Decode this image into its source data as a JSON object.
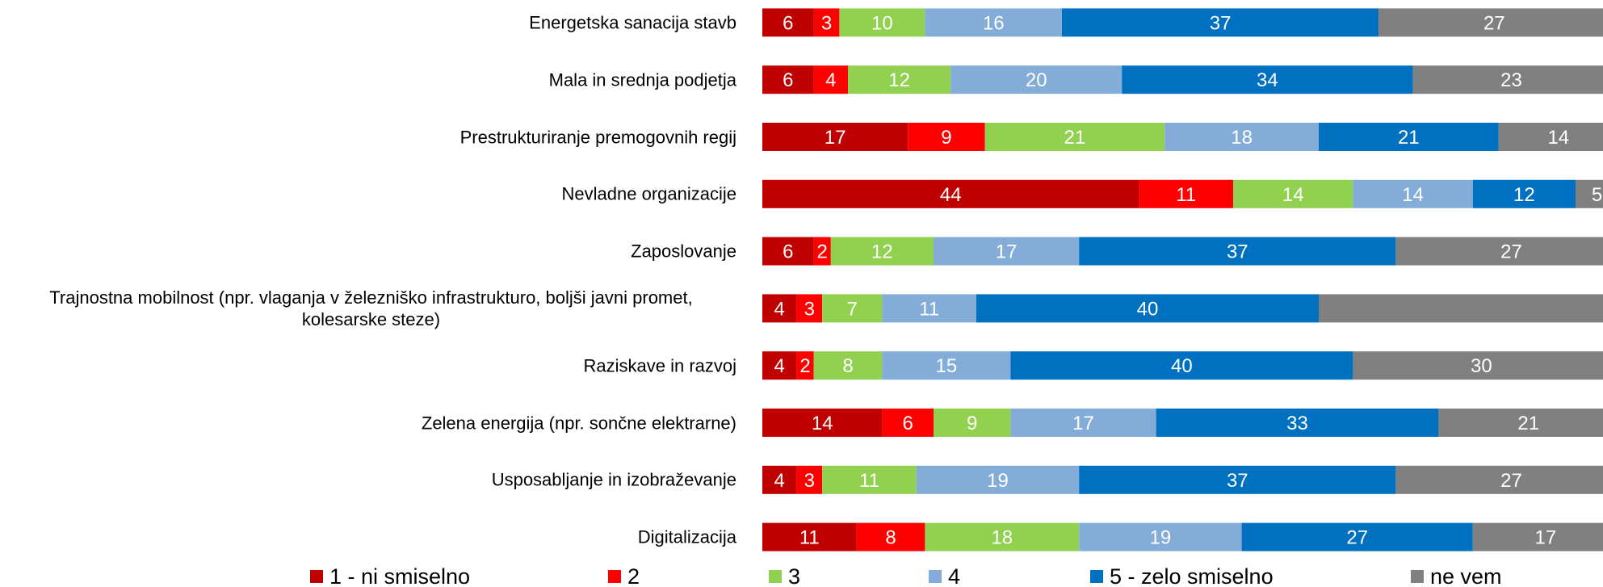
{
  "chart_data": {
    "type": "stacked_bar_horizontal",
    "categories": [
      "Energetska sanacija stavb",
      "Mala in srednja podjetja",
      "Prestrukturiranje premogovnih regij",
      "Nevladne organizacije",
      "Zaposlovanje",
      "Trajnostna mobilnost (npr. vlaganja v železniško infrastrukturo, boljši javni promet, kolesarske steze)",
      "Raziskave in razvoj",
      "Zelena energija (npr. sončne elektrarne)",
      "Usposabljanje in izobraževanje",
      "Digitalizacija"
    ],
    "series": [
      {
        "name": "1 - ni smiselno",
        "color": "#c00000",
        "values": [
          6,
          6,
          17,
          44,
          6,
          4,
          4,
          14,
          4,
          11
        ]
      },
      {
        "name": "2",
        "color": "#ff0000",
        "values": [
          3,
          4,
          9,
          11,
          2,
          3,
          2,
          6,
          3,
          8
        ]
      },
      {
        "name": "3",
        "color": "#92d050",
        "values": [
          10,
          12,
          21,
          14,
          12,
          7,
          8,
          9,
          11,
          18
        ]
      },
      {
        "name": "4",
        "color": "#84acd9",
        "values": [
          16,
          20,
          18,
          14,
          17,
          11,
          15,
          17,
          19,
          19
        ]
      },
      {
        "name": "5 - zelo smiselno",
        "color": "#0070c0",
        "values": [
          37,
          34,
          21,
          12,
          37,
          40,
          40,
          33,
          37,
          27
        ]
      },
      {
        "name": "ne vem",
        "color": "#808080",
        "values": [
          27,
          23,
          14,
          5,
          27,
          35,
          30,
          21,
          27,
          17
        ],
        "value_labels": [
          27,
          23,
          14,
          5,
          27,
          null,
          30,
          21,
          27,
          17
        ]
      }
    ],
    "xlim": [
      0,
      100
    ]
  }
}
